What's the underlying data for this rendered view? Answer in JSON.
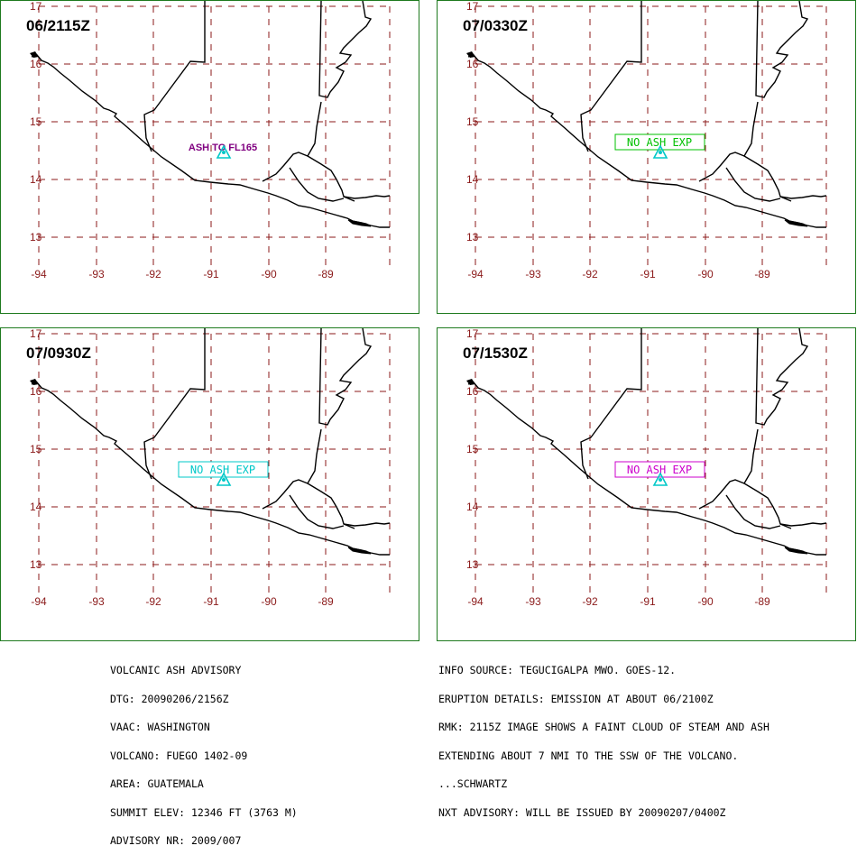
{
  "map": {
    "lat_labels": [
      "17",
      "16",
      "15",
      "14",
      "13"
    ],
    "lon_labels": [
      "-94",
      "-93",
      "-92",
      "-91",
      "-90",
      "-89"
    ],
    "grid_color": "#8b1a1a",
    "border_color": "#1e7a1e",
    "volcano_color": "#00c8c8"
  },
  "panels": [
    {
      "time": "06/2115Z",
      "label": "ASH TO FL165",
      "label_style": "plain",
      "color": "#800080"
    },
    {
      "time": "07/0330Z",
      "label": "NO ASH EXP",
      "label_style": "boxed",
      "color": "#00c000"
    },
    {
      "time": "07/0930Z",
      "label": "NO ASH EXP",
      "label_style": "boxed",
      "color": "#00c8c8"
    },
    {
      "time": "07/1530Z",
      "label": "NO ASH EXP",
      "label_style": "boxed",
      "color": "#cc00cc"
    }
  ],
  "advisory_left": [
    "VOLCANIC ASH ADVISORY",
    "DTG: 20090206/2156Z",
    "VAAC: WASHINGTON",
    "VOLCANO: FUEGO 1402-09",
    "AREA: GUATEMALA",
    "SUMMIT ELEV: 12346 FT (3763 M)",
    "ADVISORY NR: 2009/007"
  ],
  "advisory_right": [
    "INFO SOURCE: TEGUCIGALPA MWO. GOES-12.",
    "ERUPTION DETAILS: EMISSION AT ABOUT 06/2100Z",
    "RMK: 2115Z IMAGE SHOWS A FAINT CLOUD OF STEAM AND ASH",
    "EXTENDING ABOUT 7 NMI TO THE SSW OF THE VOLCANO.",
    "...SCHWARTZ",
    "NXT ADVISORY: WILL BE ISSUED BY 20090207/0400Z"
  ]
}
